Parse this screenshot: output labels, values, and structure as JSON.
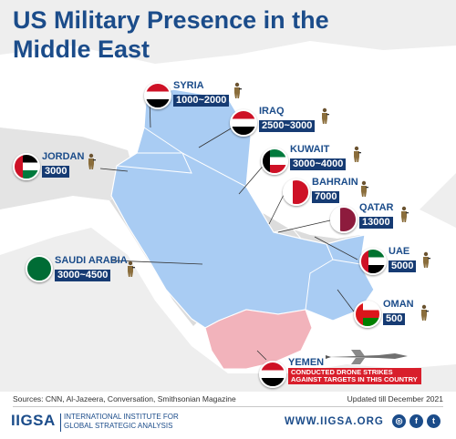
{
  "title": "US Military Presence in the Middle East",
  "colors": {
    "title": "#1b4c8a",
    "us_presence": "#a9ccf3",
    "drone_strikes": "#f2b3bb",
    "value_box": "#163b73",
    "alert_box": "#d81e2b",
    "land": "#ffffff",
    "water": "#dcdcdc"
  },
  "countries": [
    {
      "name": "SYRIA",
      "troops": "1000~2000",
      "flag": "syria-flag-icon"
    },
    {
      "name": "IRAQ",
      "troops": "2500~3000",
      "flag": "iraq-flag-icon"
    },
    {
      "name": "JORDAN",
      "troops": "3000",
      "flag": "jordan-flag-icon"
    },
    {
      "name": "KUWAIT",
      "troops": "3000~4000",
      "flag": "kuwait-flag-icon"
    },
    {
      "name": "BAHRAIN",
      "troops": "7000",
      "flag": "bahrain-flag-icon"
    },
    {
      "name": "QATAR",
      "troops": "13000",
      "flag": "qatar-flag-icon"
    },
    {
      "name": "SAUDI ARABIA",
      "troops": "3000~4500",
      "flag": "saudi-flag-icon"
    },
    {
      "name": "UAE",
      "troops": "5000",
      "flag": "uae-flag-icon"
    },
    {
      "name": "OMAN",
      "troops": "500",
      "flag": "oman-flag-icon"
    }
  ],
  "yemen": {
    "name": "YEMEN",
    "note": "CONDUCTED DRONE STRIKES AGAINST TARGETS IN THIS COUNTRY",
    "flag": "yemen-flag-icon",
    "icon": "drone-icon"
  },
  "footer": {
    "sources": "Sources: CNN, Al-Jazeera, Conversation, Smithsonian Magazine",
    "updated": "Updated till December 2021",
    "logo": "IIGSA",
    "institute_line1": "INTERNATIONAL INSTITUTE FOR",
    "institute_line2": "GLOBAL STRATEGIC ANALYSIS",
    "url": "WWW.IIGSA.ORG",
    "social": [
      "instagram-icon",
      "facebook-icon",
      "twitter-icon"
    ],
    "social_glyphs": [
      "◎",
      "f",
      "t"
    ]
  }
}
